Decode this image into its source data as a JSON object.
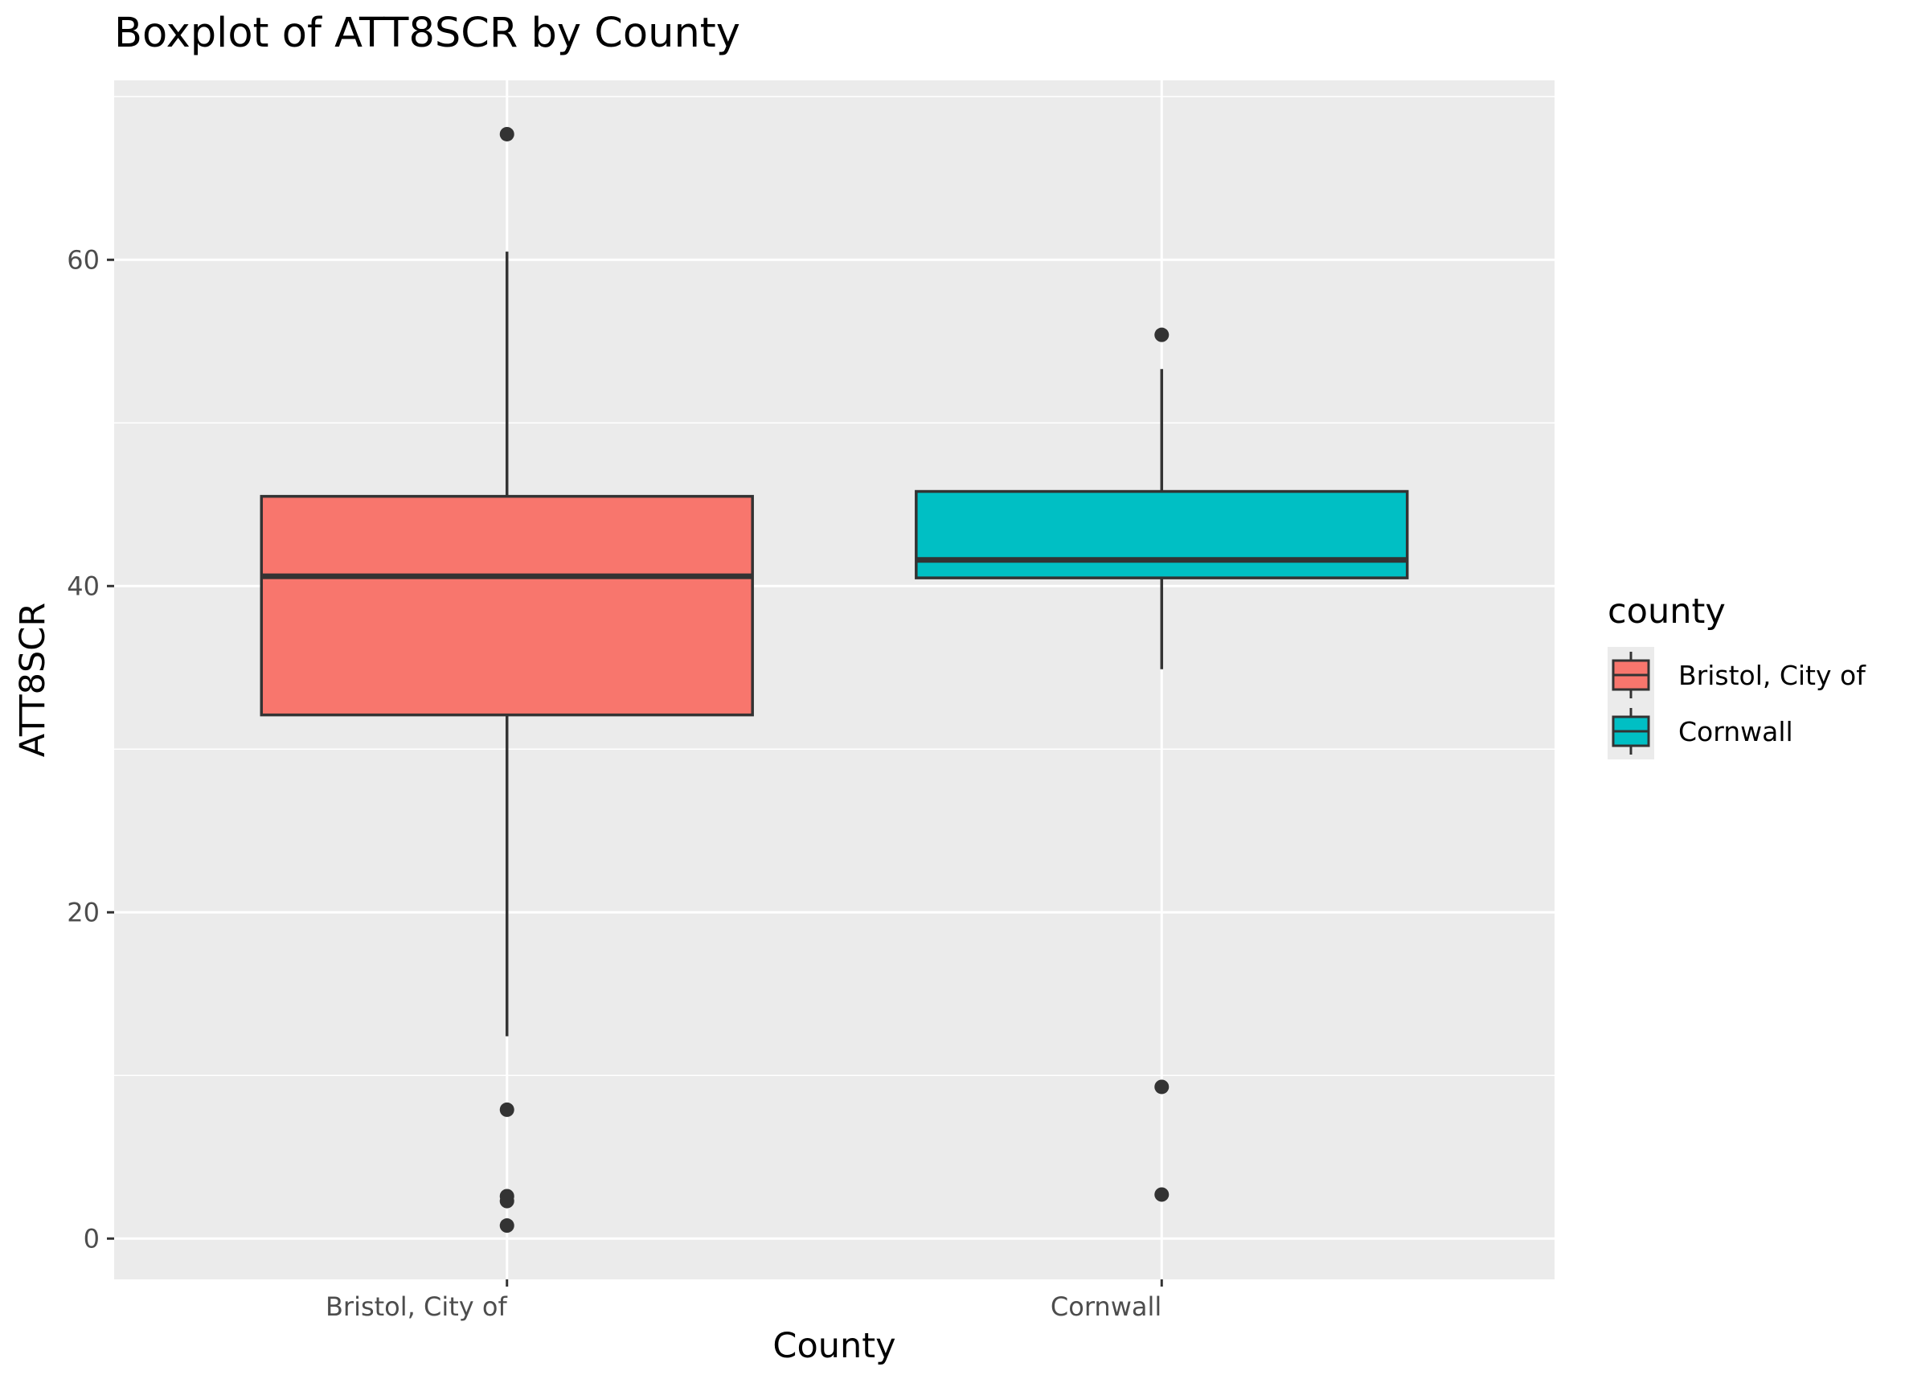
{
  "chart_data": {
    "type": "boxplot",
    "title": "Boxplot of ATT8SCR by County",
    "xlabel": "County",
    "ylabel": "ATT8SCR",
    "ylim": [
      -2.5,
      71
    ],
    "yticks": [
      0,
      20,
      40,
      60
    ],
    "grid": true,
    "legend": {
      "title": "county",
      "position": "right",
      "entries": [
        "Bristol, City of",
        "Cornwall"
      ]
    },
    "categories": [
      "Bristol, City of",
      "Cornwall"
    ],
    "series": [
      {
        "category": "Bristol, City of",
        "color": "#F8766D",
        "whisker_low": 12.4,
        "q1": 32.1,
        "median": 40.6,
        "q3": 45.5,
        "whisker_high": 60.5,
        "outliers": [
          67.7,
          7.9,
          2.6,
          2.3,
          0.8
        ]
      },
      {
        "category": "Cornwall",
        "color": "#00BFC4",
        "whisker_low": 34.9,
        "q1": 40.5,
        "median": 41.6,
        "q3": 45.8,
        "whisker_high": 53.3,
        "outliers": [
          55.4,
          9.3,
          2.7
        ]
      }
    ]
  }
}
